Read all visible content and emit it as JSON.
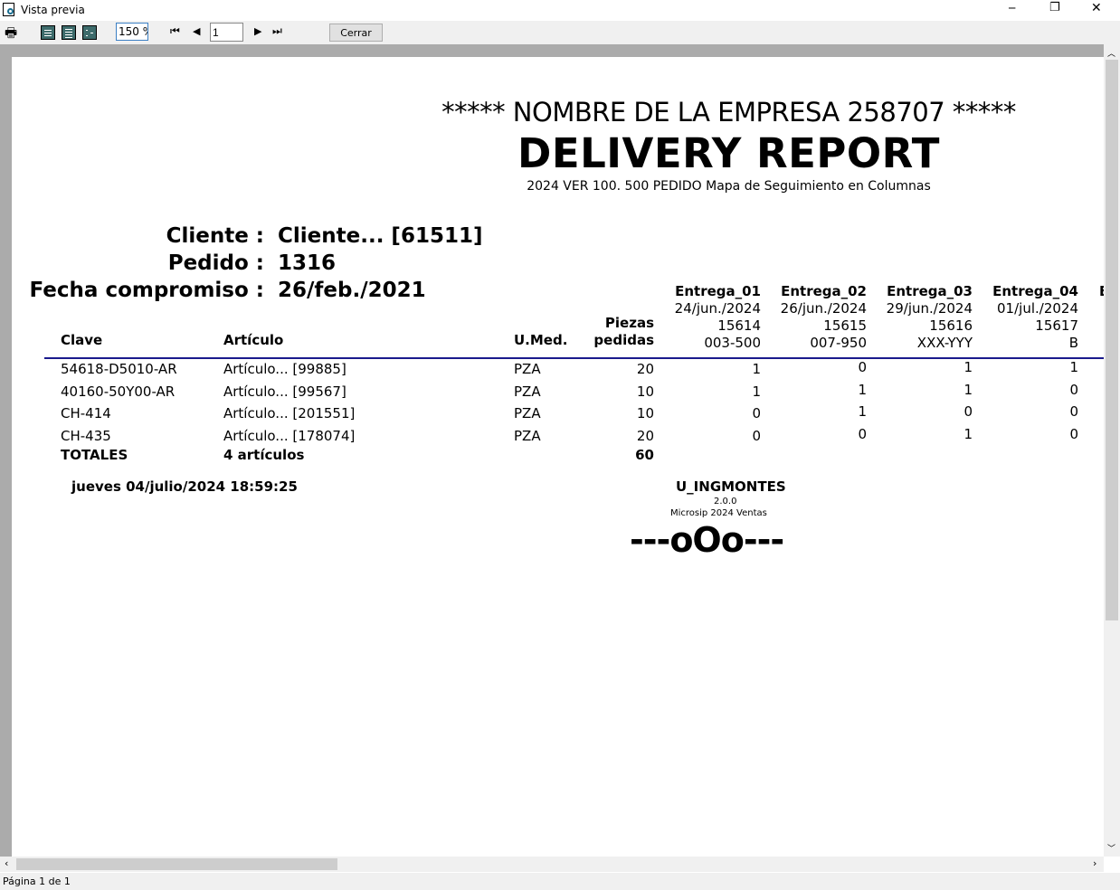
{
  "window": {
    "title": "Vista previa",
    "minimize": "─",
    "restore": "❐",
    "close": "✕"
  },
  "toolbar": {
    "zoom": "150 %",
    "page": "1",
    "close_label": "Cerrar"
  },
  "report": {
    "company": "***** NOMBRE DE LA EMPRESA 258707 *****",
    "title": "DELIVERY REPORT",
    "subtitle": "2024 VER 100. 500 PEDIDO Mapa de Seguimiento en Columnas",
    "cliente_label": "Cliente :",
    "cliente": "Cliente... [61511]",
    "pedido_label": "Pedido :",
    "pedido": "1316",
    "fecha_label": "Fecha compromiso :",
    "fecha": "26/feb./2021",
    "headers": {
      "clave": "Clave",
      "articulo": "Artículo",
      "umed": "U.Med.",
      "piezas1": "Piezas",
      "piezas2": "pedidas"
    },
    "entregas": [
      {
        "name": "Entrega_01",
        "date": "24/jun./2024",
        "num": "15614",
        "code": "003-500"
      },
      {
        "name": "Entrega_02",
        "date": "26/jun./2024",
        "num": "15615",
        "code": "007-950"
      },
      {
        "name": "Entrega_03",
        "date": "29/jun./2024",
        "num": "15616",
        "code": "XXX-YYY"
      },
      {
        "name": "Entrega_04",
        "date": "01/jul./2024",
        "num": "15617",
        "code": "B"
      }
    ],
    "entrega_partial": "E",
    "rows": [
      {
        "clave": "54618-D5010-AR",
        "articulo": "Artículo... [99885]",
        "umed": "PZA",
        "piezas": "20",
        "e": [
          "1",
          "0",
          "1",
          "1"
        ]
      },
      {
        "clave": "40160-50Y00-AR",
        "articulo": "Artículo... [99567]",
        "umed": "PZA",
        "piezas": "10",
        "e": [
          "1",
          "1",
          "1",
          "0"
        ]
      },
      {
        "clave": "CH-414",
        "articulo": "Artículo... [201551]",
        "umed": "PZA",
        "piezas": "10",
        "e": [
          "0",
          "1",
          "0",
          "0"
        ]
      },
      {
        "clave": "CH-435",
        "articulo": "Artículo... [178074]",
        "umed": "PZA",
        "piezas": "20",
        "e": [
          "0",
          "0",
          "1",
          "0"
        ]
      }
    ],
    "totals": {
      "label": "TOTALES",
      "articulos": "4 artículos",
      "piezas": "60"
    },
    "timestamp": "jueves 04/julio/2024 18:59:25",
    "user": "U_INGMONTES",
    "version": "2.0.0",
    "system": "Microsip 2024 Ventas",
    "end_mark": "---oOo---"
  },
  "status": {
    "text": "Página 1 de 1"
  }
}
